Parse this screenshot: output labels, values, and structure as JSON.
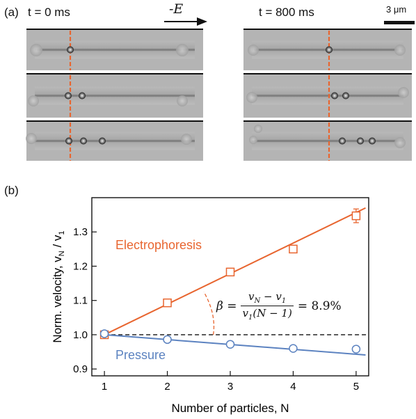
{
  "panel_a": {
    "label": "(a)",
    "left_time": "t = 0 ms",
    "right_time": "t = 800 ms",
    "field_label": "-E",
    "scale_bar": "3 μm",
    "frames_left": [
      {
        "particles": 1
      },
      {
        "particles": 2
      },
      {
        "particles": 3
      }
    ],
    "frames_right": [
      {
        "particles": 1
      },
      {
        "particles": 2
      },
      {
        "particles": 3
      }
    ]
  },
  "panel_b": {
    "label": "(b)",
    "eq_lhs": "β =",
    "eq_num": "v",
    "eq_num_sub1": "N",
    "eq_num_mid": " − v",
    "eq_num_sub2": "1",
    "eq_den": "v",
    "eq_den_sub": "1",
    "eq_den_rest": "(N − 1)",
    "eq_rhs": "= 8.9%",
    "electro_label": "Electrophoresis",
    "pressure_label": "Pressure"
  },
  "colors": {
    "electrophoresis": "#e8652f",
    "pressure": "#5b82c0",
    "reference": "#111111"
  },
  "chart_data": {
    "type": "scatter",
    "xlabel": "Number of particles,   N",
    "ylabel": "Norm. velocity,   v_N / v_1",
    "xlim": [
      0.8,
      5.2
    ],
    "ylim": [
      0.88,
      1.4
    ],
    "xticks": [
      1,
      2,
      3,
      4,
      5
    ],
    "yticks": [
      0.9,
      1.0,
      1.1,
      1.2,
      1.3
    ],
    "series": [
      {
        "name": "Electrophoresis",
        "marker": "square",
        "x": [
          1,
          2,
          3,
          4,
          5
        ],
        "y": [
          1.0,
          1.093,
          1.183,
          1.25,
          1.347
        ],
        "err": [
          0,
          0,
          0,
          0,
          0.02
        ],
        "fit": {
          "x": [
            1,
            5.15
          ],
          "y": [
            1.0,
            1.37
          ]
        }
      },
      {
        "name": "Pressure",
        "marker": "circle",
        "x": [
          1,
          2,
          3,
          4,
          5
        ],
        "y": [
          1.003,
          0.986,
          0.972,
          0.96,
          0.958
        ],
        "fit": {
          "x": [
            1,
            5.15
          ],
          "y": [
            1.0,
            0.941
          ]
        }
      }
    ],
    "reference_line": 1.0
  }
}
